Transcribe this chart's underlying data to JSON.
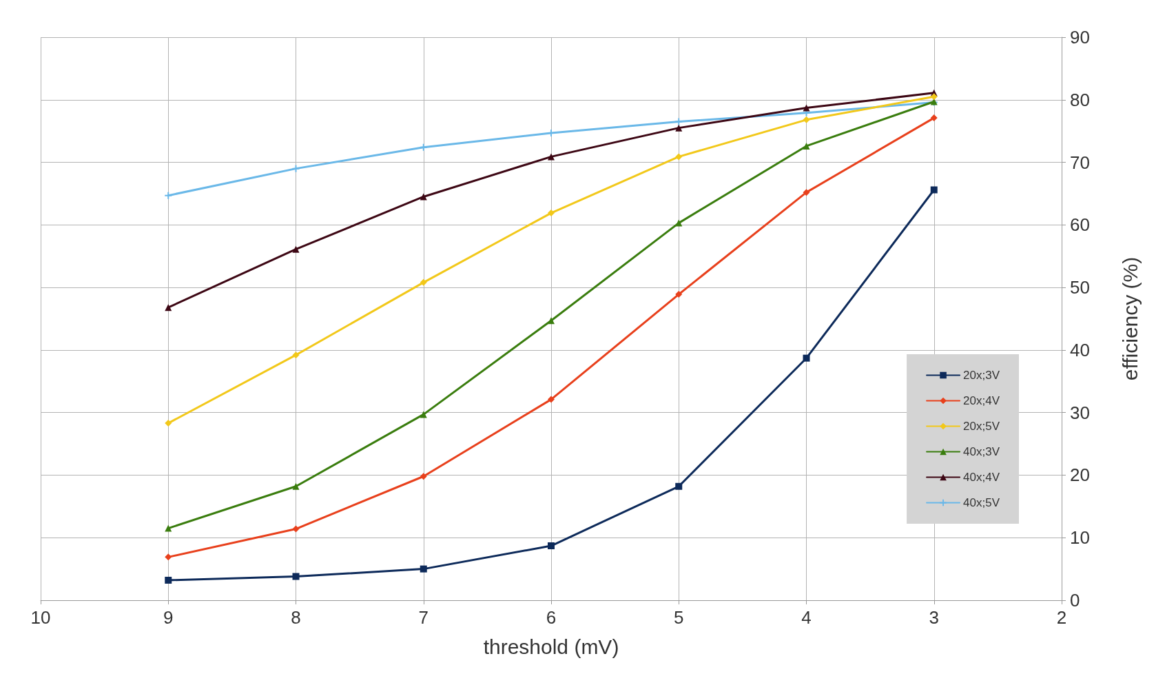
{
  "chart_data": {
    "type": "line",
    "xlabel": "threshold (mV)",
    "ylabel": "efficiency (%)",
    "x": [
      9,
      8,
      7,
      6,
      5,
      4,
      3
    ],
    "xlim": [
      10,
      2
    ],
    "xticks": [
      10,
      9,
      8,
      7,
      6,
      5,
      4,
      3,
      2
    ],
    "ylim": [
      0,
      90
    ],
    "yticks": [
      0,
      10,
      20,
      30,
      40,
      50,
      60,
      70,
      80,
      90
    ],
    "grid": true,
    "legend": "bottom right",
    "series": [
      {
        "name": "20x;3V",
        "color": "#0d2a5a",
        "marker": "square",
        "values": [
          3.2,
          3.8,
          5.0,
          8.7,
          18.2,
          38.7,
          65.6
        ]
      },
      {
        "name": "20x;4V",
        "color": "#e8401c",
        "marker": "diamond",
        "values": [
          6.9,
          11.4,
          19.8,
          32.1,
          48.9,
          65.2,
          77.1
        ]
      },
      {
        "name": "20x;5V",
        "color": "#f2c81a",
        "marker": "diamond",
        "values": [
          28.3,
          39.2,
          50.8,
          61.9,
          70.9,
          76.8,
          80.5
        ]
      },
      {
        "name": "40x;3V",
        "color": "#3a7d0e",
        "marker": "triangle",
        "values": [
          11.5,
          18.2,
          29.7,
          44.7,
          60.3,
          72.6,
          79.7
        ]
      },
      {
        "name": "40x;4V",
        "color": "#3d0714",
        "marker": "triangle",
        "values": [
          46.8,
          56.1,
          64.5,
          70.9,
          75.5,
          78.7,
          81.1
        ]
      },
      {
        "name": "40x;5V",
        "color": "#6ab8e8",
        "marker": "cross",
        "values": [
          64.7,
          69.0,
          72.4,
          74.7,
          76.5,
          77.9,
          79.6
        ]
      }
    ]
  }
}
